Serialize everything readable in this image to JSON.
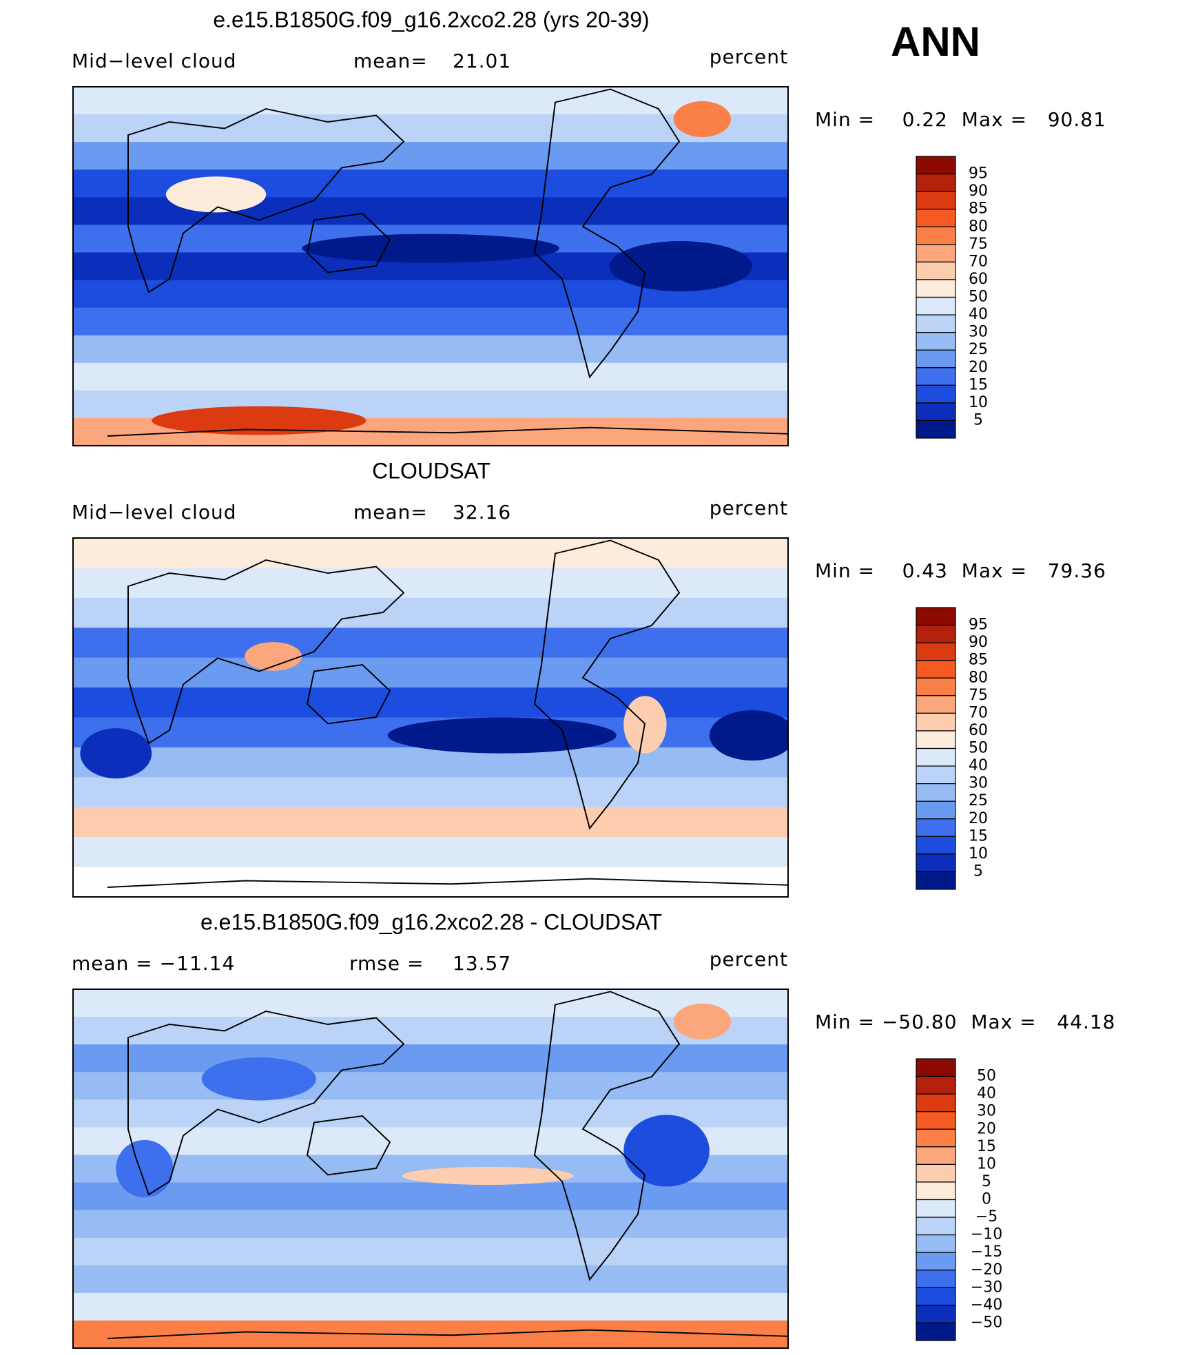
{
  "header": {
    "season": "ANN"
  },
  "panels": [
    {
      "title": "e.e15.B1850G.f09_g16.2xco2.28 (yrs 20-39)",
      "left": "Mid−level cloud",
      "center_label": "mean=",
      "center_value": "21.01",
      "units": "percent",
      "min_max": "Min =    0.22  Max =   90.81",
      "colorbar": {
        "labels": [
          "95",
          "90",
          "85",
          "80",
          "75",
          "70",
          "60",
          "50",
          "40",
          "30",
          "25",
          "20",
          "15",
          "10",
          "5"
        ],
        "colors": [
          "#8c0a00",
          "#b3200c",
          "#dc3a10",
          "#f45a22",
          "#fb8048",
          "#fca67e",
          "#fdcdb0",
          "#fdebdc",
          "#dce9f8",
          "#bad3f6",
          "#97bbf3",
          "#6b9bf1",
          "#3e70ee",
          "#1c4ddf",
          "#0b2fba",
          "#001a8c"
        ]
      }
    },
    {
      "title": "CLOUDSAT",
      "left": "Mid−level cloud",
      "center_label": "mean=",
      "center_value": "32.16",
      "units": "percent",
      "min_max": "Min =    0.43  Max =   79.36",
      "colorbar": {
        "labels": [
          "95",
          "90",
          "85",
          "80",
          "75",
          "70",
          "60",
          "50",
          "40",
          "30",
          "25",
          "20",
          "15",
          "10",
          "5"
        ],
        "colors": [
          "#8c0a00",
          "#b3200c",
          "#dc3a10",
          "#f45a22",
          "#fb8048",
          "#fca67e",
          "#fdcdb0",
          "#fdebdc",
          "#dce9f8",
          "#bad3f6",
          "#97bbf3",
          "#6b9bf1",
          "#3e70ee",
          "#1c4ddf",
          "#0b2fba",
          "#001a8c"
        ]
      }
    },
    {
      "title": "e.e15.B1850G.f09_g16.2xco2.28 - CLOUDSAT",
      "left": "mean = −11.14",
      "center_label": "rmse =",
      "center_value": "13.57",
      "units": "percent",
      "min_max": "Min = −50.80  Max =   44.18",
      "colorbar": {
        "labels": [
          "50",
          "40",
          "30",
          "20",
          "15",
          "10",
          "5",
          "0",
          "−5",
          "−10",
          "−15",
          "−20",
          "−30",
          "−40",
          "−50"
        ],
        "colors": [
          "#8c0a00",
          "#b3200c",
          "#dc3a10",
          "#f45a22",
          "#fb8048",
          "#fca67e",
          "#fdcdb0",
          "#fdebdc",
          "#dce9f8",
          "#bad3f6",
          "#97bbf3",
          "#6b9bf1",
          "#3e70ee",
          "#1c4ddf",
          "#0b2fba",
          "#001a8c"
        ]
      }
    }
  ]
}
